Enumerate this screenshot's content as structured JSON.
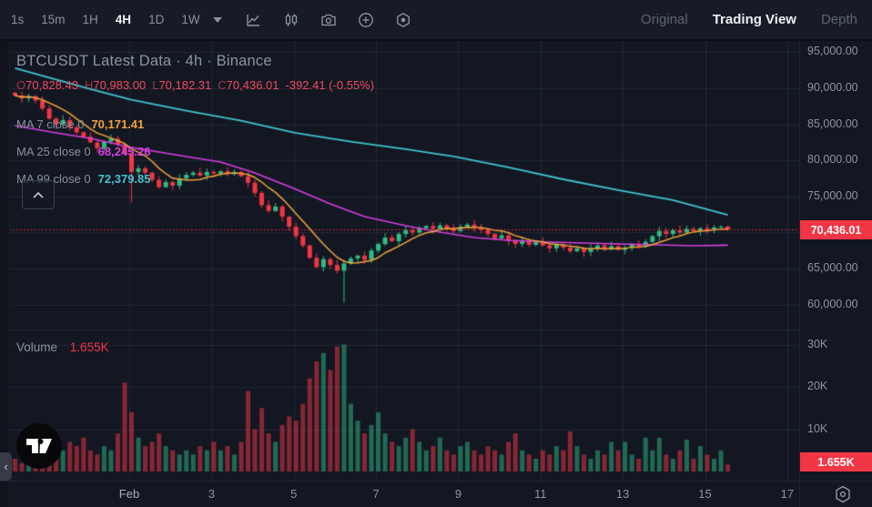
{
  "toolbar": {
    "timeframes": [
      "1s",
      "15m",
      "1H",
      "4H",
      "1D",
      "1W"
    ],
    "active_timeframe": "4H",
    "icons": [
      "caret-down",
      "line-chart",
      "candles",
      "camera",
      "plus-circle",
      "settings-hexagon"
    ],
    "view_tabs": [
      "Original",
      "Trading View",
      "Depth"
    ],
    "active_view_tab": "Trading View"
  },
  "legend": {
    "title": "BTCUSDT Latest Data · 4h · Binance",
    "ohlc": {
      "o_label": "O",
      "o": "70,828.43",
      "h_label": "H",
      "h": "70,983.00",
      "l_label": "L",
      "l": "70,182.31",
      "c_label": "C",
      "c": "70,436.01",
      "change": "-392.41 (-0.55%)"
    },
    "ma_rows": [
      {
        "label": "MA 7 close 0",
        "value": "70,171.41",
        "color": "#efa53a"
      },
      {
        "label": "MA 25 close 0",
        "value": "68,245.26",
        "color": "#d63fe0"
      },
      {
        "label": "MA 99 close 0",
        "value": "72,379.85",
        "color": "#41c3cf"
      }
    ]
  },
  "volume_legend": {
    "label": "Volume",
    "value": "1.655K"
  },
  "axes": {
    "price_ticks": [
      95000,
      90000,
      85000,
      80000,
      75000,
      65000,
      60000
    ],
    "price_grid": [
      95000,
      90000,
      85000,
      80000,
      75000,
      70000,
      65000,
      60000
    ],
    "price_badge": "70,436.01",
    "volume_ticks": [
      {
        "label": "30K",
        "k": 30
      },
      {
        "label": "20K",
        "k": 20
      },
      {
        "label": "10K",
        "k": 10
      }
    ],
    "volume_badge": "1.655K",
    "time_ticks": [
      "Feb",
      "3",
      "5",
      "7",
      "9",
      "11",
      "13",
      "15",
      "17"
    ]
  },
  "colors": {
    "up": "#2ebd85",
    "down": "#f23645",
    "vol_up": "rgba(46,189,133,0.5)",
    "vol_down": "rgba(242,54,69,0.52)",
    "ma7": "#efa53a",
    "ma25": "#d63fe0",
    "ma99": "#41c3cf",
    "grid": "rgba(70,82,110,0.28)",
    "price_line": "#f23645",
    "badge_bg": "#f23645"
  },
  "chart_data": {
    "type": "candlestick",
    "symbol": "BTCUSDT",
    "interval": "4h",
    "exchange": "Binance",
    "legend_note": "Latest Data",
    "last_candle": {
      "open": 70828.43,
      "high": 70983.0,
      "low": 70182.31,
      "close": 70436.01,
      "change": -392.41,
      "change_pct": -0.55
    },
    "indicators": {
      "ma7": 70171.41,
      "ma25": 68245.26,
      "ma99": 72379.85
    },
    "volume_last_k": 1.655,
    "x_axis_days": [
      "Feb 1",
      "3",
      "5",
      "7",
      "9",
      "11",
      "13",
      "15",
      "17"
    ],
    "price_axis_visible_range": [
      57500,
      96500
    ],
    "volume_axis_range_k": [
      0,
      34
    ],
    "closes": [
      89000,
      88600,
      88900,
      88300,
      87200,
      85800,
      85000,
      85600,
      84600,
      83900,
      83300,
      82500,
      81700,
      82600,
      83000,
      82200,
      81000,
      78400,
      78900,
      78300,
      77300,
      76300,
      77000,
      76500,
      77500,
      78000,
      78300,
      77900,
      78400,
      78200,
      78500,
      78100,
      78400,
      77800,
      76900,
      75500,
      73800,
      73000,
      73600,
      72200,
      70800,
      69500,
      68200,
      66500,
      65200,
      66300,
      65500,
      64700,
      65700,
      66400,
      66800,
      66200,
      67500,
      68400,
      69300,
      68800,
      69800,
      70300,
      70000,
      70600,
      70900,
      70500,
      71000,
      70600,
      70200,
      70800,
      71100,
      70700,
      70400,
      69800,
      69200,
      69600,
      68900,
      68400,
      68800,
      68300,
      68700,
      68200,
      67800,
      68300,
      67900,
      67400,
      67800,
      67300,
      67800,
      68200,
      67700,
      68100,
      67600,
      67900,
      68400,
      68100,
      68700,
      69500,
      70200,
      69800,
      70300,
      70000,
      70500,
      70200,
      70600,
      70300,
      70700,
      70828,
      70436
    ],
    "volumes_k": [
      3,
      2,
      4,
      3,
      5,
      6,
      9,
      5,
      7,
      6,
      8,
      5,
      4,
      6,
      5,
      9,
      21,
      14,
      8,
      6,
      7,
      9,
      6,
      5,
      4,
      5,
      4,
      6,
      5,
      7,
      5,
      6,
      4,
      7,
      19,
      10,
      15,
      9,
      7,
      11,
      13,
      12,
      16,
      22,
      26,
      28,
      24,
      29.5,
      30,
      16,
      12,
      9,
      11,
      14,
      9,
      7,
      6,
      8,
      10,
      7,
      5,
      6,
      8,
      5,
      4,
      6,
      7,
      5,
      4,
      6,
      5,
      4,
      7,
      9,
      5,
      4,
      3,
      5,
      4,
      6,
      5,
      9.5,
      6,
      4,
      3,
      5,
      4,
      7,
      5,
      7,
      4,
      3,
      8,
      5,
      8,
      4,
      3,
      5,
      7.5,
      3,
      6,
      4,
      3,
      5,
      1.655
    ],
    "overrides": {
      "17": {
        "l": 74200
      },
      "48": {
        "l": 60300
      },
      "104": {
        "o": 70828.43,
        "h": 70983.0,
        "l": 70182.31,
        "c": 70436.01
      }
    },
    "ma25_points": [
      [
        0,
        84840
      ],
      [
        6,
        83820
      ],
      [
        11,
        83070
      ],
      [
        17,
        81800
      ],
      [
        25,
        80540
      ],
      [
        30,
        79780
      ],
      [
        35,
        78270
      ],
      [
        41,
        76000
      ],
      [
        46,
        73970
      ],
      [
        51,
        72200
      ],
      [
        57,
        70940
      ],
      [
        62,
        70060
      ],
      [
        67,
        69300
      ],
      [
        72,
        68920
      ],
      [
        78,
        68670
      ],
      [
        83,
        68540
      ],
      [
        88,
        68410
      ],
      [
        94,
        68290
      ],
      [
        99,
        68160
      ],
      [
        104,
        68245
      ]
    ],
    "ma99_points": [
      [
        0,
        92800
      ],
      [
        11,
        89900
      ],
      [
        17,
        88400
      ],
      [
        25,
        86900
      ],
      [
        33,
        85500
      ],
      [
        41,
        83800
      ],
      [
        49,
        82600
      ],
      [
        57,
        81550
      ],
      [
        64,
        80540
      ],
      [
        72,
        79030
      ],
      [
        80,
        77380
      ],
      [
        88,
        75870
      ],
      [
        96,
        74480
      ],
      [
        104,
        72450
      ]
    ],
    "current_price": 70436.01
  }
}
